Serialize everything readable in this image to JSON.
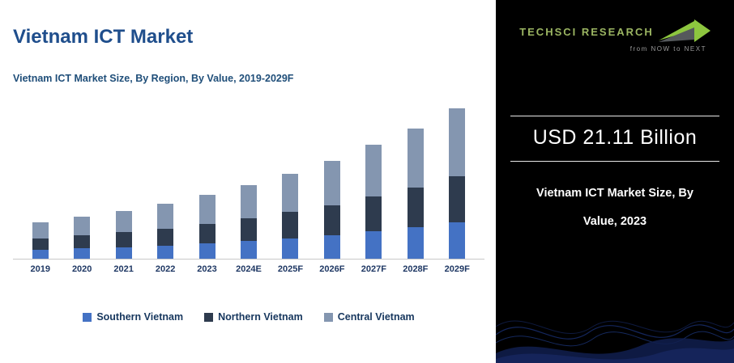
{
  "left": {
    "title": "Vietnam ICT Market",
    "subtitle": "Vietnam ICT Market Size, By Region, By Value, 2019-2029F"
  },
  "chart_data": {
    "type": "bar",
    "stacked": true,
    "title": "Vietnam ICT Market Size, By Region, By Value, 2019-2029F",
    "units": "USD Billion",
    "categories": [
      "2019",
      "2020",
      "2021",
      "2022",
      "2023",
      "2024E",
      "2025F",
      "2026F",
      "2027F",
      "2028F",
      "2029F"
    ],
    "series": [
      {
        "name": "Southern Vietnam",
        "color": "#4472C4",
        "values": [
          2.9,
          3.4,
          3.8,
          4.4,
          5.1,
          5.8,
          6.7,
          7.7,
          9.0,
          10.3,
          11.9
        ]
      },
      {
        "name": "Northern Vietnam",
        "color": "#2E3B4E",
        "values": [
          3.7,
          4.3,
          4.9,
          5.6,
          6.5,
          7.5,
          8.7,
          10.0,
          11.6,
          13.3,
          15.4
        ]
      },
      {
        "name": "Central Vietnam",
        "color": "#8496B0",
        "values": [
          5.3,
          6.3,
          7.1,
          8.2,
          9.5,
          11.0,
          12.6,
          14.5,
          16.9,
          19.4,
          22.3
        ]
      }
    ],
    "totals": [
      11.9,
      14.0,
      15.8,
      18.2,
      21.11,
      24.3,
      28.0,
      32.2,
      37.5,
      43.0,
      49.6
    ],
    "xlabel": "",
    "ylabel": "",
    "ylim": [
      0,
      52
    ],
    "grid": false,
    "legend_position": "bottom"
  },
  "right": {
    "logo": {
      "brand": "TechSci Research",
      "tagline": "from NOW to NEXT"
    },
    "highlight_value": "USD 21.11 Billion",
    "highlight_caption": "Vietnam ICT Market Size, By Value, 2023"
  }
}
